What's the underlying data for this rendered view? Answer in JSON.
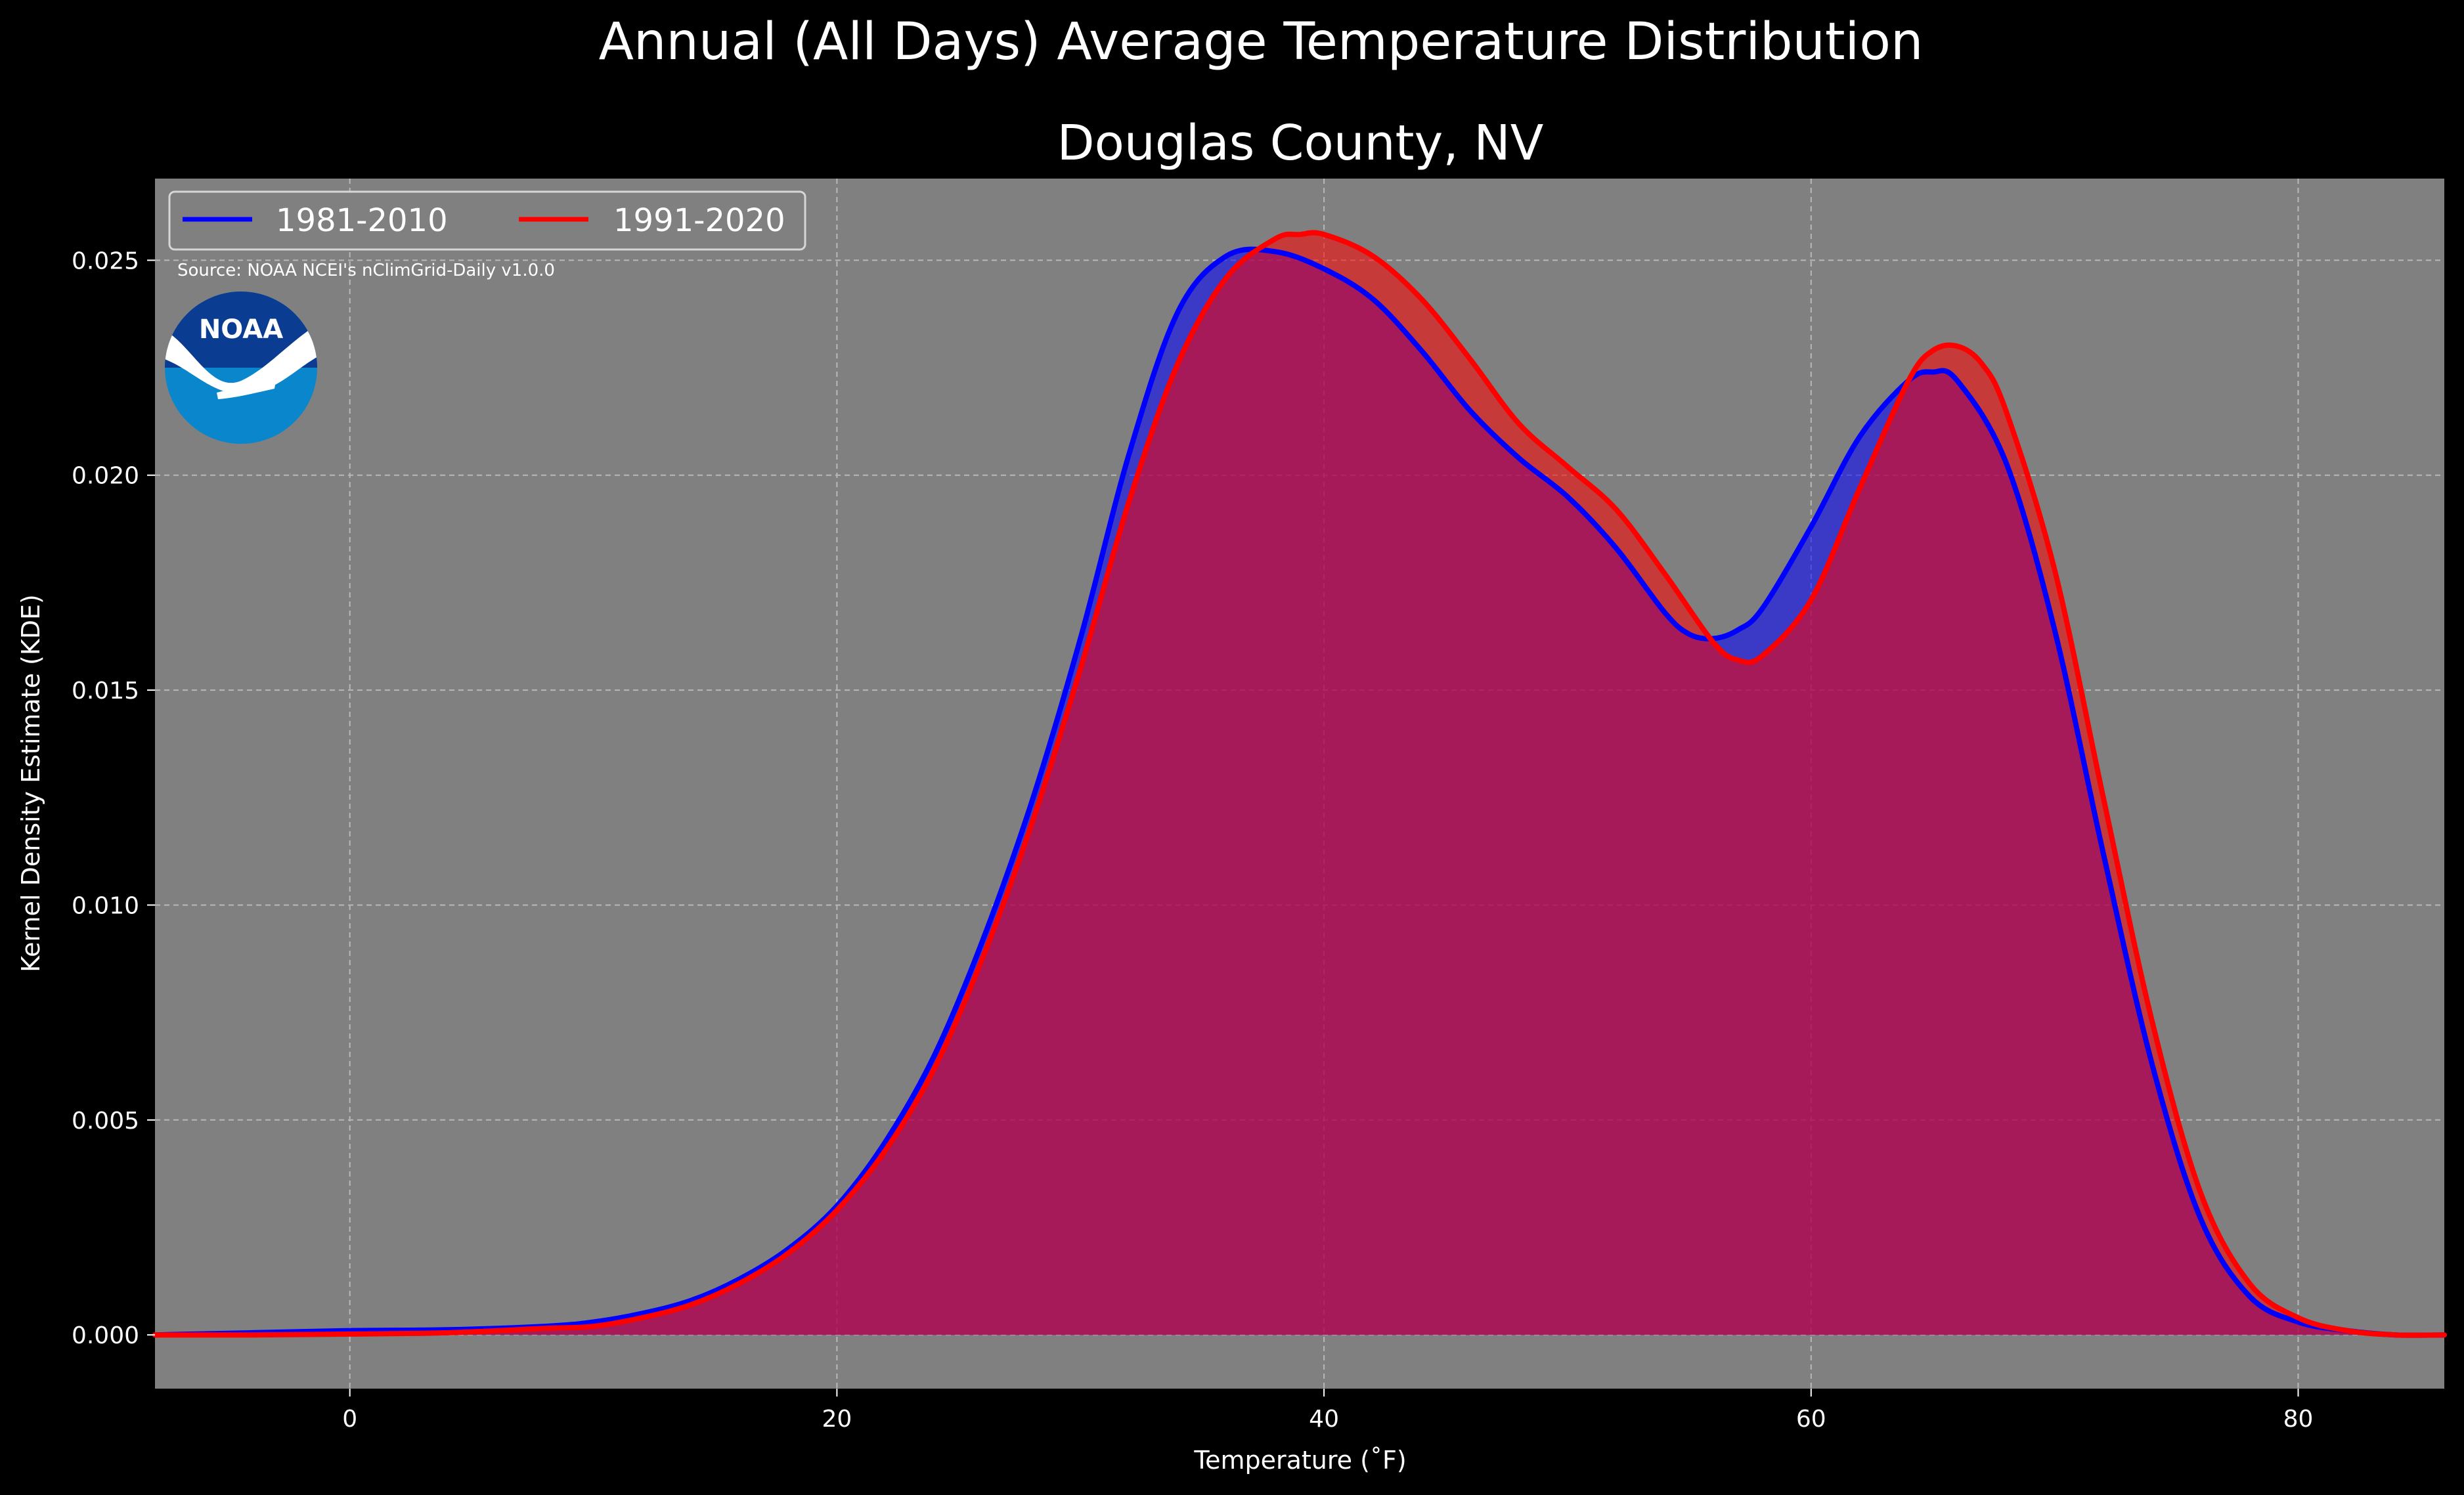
{
  "figure": {
    "suptitle": "Annual (All Days) Average Temperature Distribution",
    "title": "Douglas County, NV",
    "source": "Source: NOAA NCEI's nClimGrid-Daily v1.0.0",
    "logo_text": "NOAA"
  },
  "colors": {
    "background": "#000000",
    "plot_bg": "#808080",
    "series_1981": "#0000ff",
    "series_1991": "#ff0000",
    "overlap_fill": "#9e1f5b",
    "logo_dark": "#0a3d91",
    "logo_light": "#0a86cc"
  },
  "chart_data": {
    "type": "area",
    "title": "Douglas County, NV",
    "xlabel": "Temperature ($^\\circ$F)",
    "xlabel_display": "Temperature (˚F)",
    "ylabel": "Kernel Density Estimate (KDE)",
    "xlim": [
      -8,
      86
    ],
    "ylim": [
      -0.00125,
      0.0269
    ],
    "xticks": [
      0,
      20,
      40,
      60,
      80
    ],
    "yticks": [
      0.0,
      0.005,
      0.01,
      0.015,
      0.02,
      0.025
    ],
    "ytick_labels": [
      "0.000",
      "0.005",
      "0.010",
      "0.015",
      "0.020",
      "0.025"
    ],
    "grid": true,
    "legend": {
      "placement": "top-left",
      "ncol": 2
    },
    "series": [
      {
        "name": "1981-2010",
        "color": "#0000ff",
        "x": [
          -8,
          -4,
          0,
          4,
          8,
          10,
          12,
          14,
          16,
          18,
          20,
          22,
          24,
          26,
          28,
          30,
          32,
          34,
          36,
          38,
          40,
          42,
          44,
          46,
          48,
          50,
          52,
          54,
          55,
          56,
          57,
          58,
          60,
          62,
          64,
          65,
          66,
          68,
          70,
          72,
          74,
          76,
          78,
          80,
          82,
          84,
          86
        ],
        "y": [
          0.0,
          5e-05,
          0.0001,
          0.00012,
          0.0002,
          0.0003,
          0.0005,
          0.0008,
          0.0013,
          0.002,
          0.003,
          0.0045,
          0.0065,
          0.0092,
          0.0124,
          0.0162,
          0.0205,
          0.0238,
          0.0251,
          0.0252,
          0.0248,
          0.0241,
          0.0229,
          0.0215,
          0.0204,
          0.0195,
          0.0183,
          0.0168,
          0.0163,
          0.0162,
          0.0164,
          0.0169,
          0.0188,
          0.0209,
          0.0222,
          0.0224,
          0.0222,
          0.0203,
          0.0164,
          0.0112,
          0.0063,
          0.0027,
          0.0009,
          0.0003,
          0.0001,
          0.0,
          0.0
        ]
      },
      {
        "name": "1991-2020",
        "color": "#ff0000",
        "x": [
          -8,
          -4,
          0,
          4,
          8,
          10,
          12,
          14,
          16,
          18,
          20,
          22,
          24,
          26,
          28,
          30,
          32,
          34,
          36,
          38,
          39,
          40,
          42,
          44,
          46,
          48,
          50,
          52,
          54,
          56,
          57,
          58,
          60,
          62,
          64,
          65,
          66,
          67,
          68,
          70,
          72,
          74,
          76,
          78,
          80,
          82,
          84,
          86
        ],
        "y": [
          0.0,
          0.0,
          2e-05,
          5e-05,
          0.00015,
          0.0002,
          0.0004,
          0.0007,
          0.0012,
          0.0019,
          0.0029,
          0.0043,
          0.0062,
          0.0088,
          0.0119,
          0.0155,
          0.0194,
          0.0226,
          0.0246,
          0.0255,
          0.0256,
          0.0256,
          0.0251,
          0.0241,
          0.0227,
          0.0212,
          0.0202,
          0.0192,
          0.0177,
          0.0161,
          0.0157,
          0.0158,
          0.0171,
          0.0197,
          0.0222,
          0.0229,
          0.023,
          0.0226,
          0.0215,
          0.0178,
          0.0125,
          0.0073,
          0.0033,
          0.0012,
          0.0004,
          0.0001,
          0.0,
          0.0
        ]
      }
    ]
  }
}
